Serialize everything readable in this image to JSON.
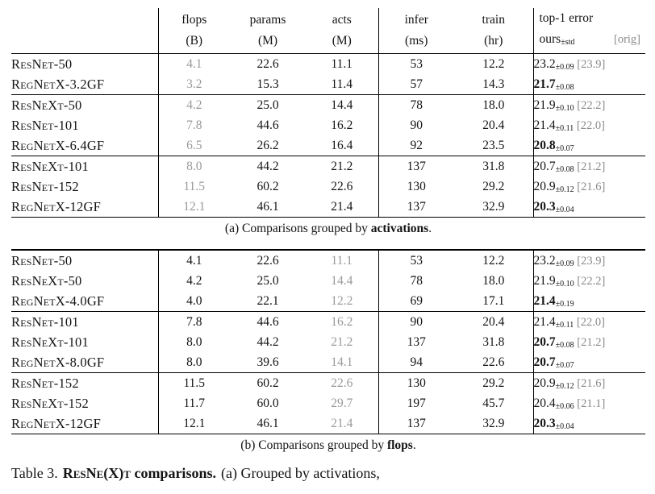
{
  "page": {
    "background": "#ffffff",
    "text_color": "#141414",
    "muted_color": "#999999",
    "orig_color": "#8a8a8a"
  },
  "header": {
    "columns": [
      {
        "name": "flops",
        "unit": "(B)"
      },
      {
        "name": "params",
        "unit": "(M)"
      },
      {
        "name": "acts",
        "unit": "(M)"
      },
      {
        "name": "infer",
        "unit": "(ms)"
      },
      {
        "name": "train",
        "unit": "(hr)"
      }
    ],
    "top1_line1": "top-1 error",
    "top1_ours": "ours",
    "top1_std": "±std",
    "top1_orig": "[orig]"
  },
  "table_a": {
    "muted_column": "flops",
    "caption": {
      "prefix": "(a) Comparisons grouped by ",
      "bold": "activations",
      "suffix": "."
    },
    "groups": [
      {
        "rows": [
          {
            "model": "ResNet-50",
            "flops": "4.1",
            "params": "22.6",
            "acts": "11.1",
            "infer": "53",
            "train": "12.2",
            "err": "23.2",
            "std": "±0.09",
            "orig": "[23.9]",
            "bold": false
          },
          {
            "model": "RegNetX-3.2GF",
            "flops": "3.2",
            "params": "15.3",
            "acts": "11.4",
            "infer": "57",
            "train": "14.3",
            "err": "21.7",
            "std": "±0.08",
            "orig": "",
            "bold": true
          }
        ]
      },
      {
        "rows": [
          {
            "model": "ResNeXt-50",
            "flops": "4.2",
            "params": "25.0",
            "acts": "14.4",
            "infer": "78",
            "train": "18.0",
            "err": "21.9",
            "std": "±0.10",
            "orig": "[22.2]",
            "bold": false
          },
          {
            "model": "ResNet-101",
            "flops": "7.8",
            "params": "44.6",
            "acts": "16.2",
            "infer": "90",
            "train": "20.4",
            "err": "21.4",
            "std": "±0.11",
            "orig": "[22.0]",
            "bold": false
          },
          {
            "model": "RegNetX-6.4GF",
            "flops": "6.5",
            "params": "26.2",
            "acts": "16.4",
            "infer": "92",
            "train": "23.5",
            "err": "20.8",
            "std": "±0.07",
            "orig": "",
            "bold": true
          }
        ]
      },
      {
        "rows": [
          {
            "model": "ResNeXt-101",
            "flops": "8.0",
            "params": "44.2",
            "acts": "21.2",
            "infer": "137",
            "train": "31.8",
            "err": "20.7",
            "std": "±0.08",
            "orig": "[21.2]",
            "bold": false
          },
          {
            "model": "ResNet-152",
            "flops": "11.5",
            "params": "60.2",
            "acts": "22.6",
            "infer": "130",
            "train": "29.2",
            "err": "20.9",
            "std": "±0.12",
            "orig": "[21.6]",
            "bold": false
          },
          {
            "model": "RegNetX-12GF",
            "flops": "12.1",
            "params": "46.1",
            "acts": "21.4",
            "infer": "137",
            "train": "32.9",
            "err": "20.3",
            "std": "±0.04",
            "orig": "",
            "bold": true
          }
        ]
      }
    ]
  },
  "table_b": {
    "muted_column": "acts",
    "caption": {
      "prefix": "(b) Comparisons grouped by ",
      "bold": "flops",
      "suffix": "."
    },
    "groups": [
      {
        "rows": [
          {
            "model": "ResNet-50",
            "flops": "4.1",
            "params": "22.6",
            "acts": "11.1",
            "infer": "53",
            "train": "12.2",
            "err": "23.2",
            "std": "±0.09",
            "orig": "[23.9]",
            "bold": false
          },
          {
            "model": "ResNeXt-50",
            "flops": "4.2",
            "params": "25.0",
            "acts": "14.4",
            "infer": "78",
            "train": "18.0",
            "err": "21.9",
            "std": "±0.10",
            "orig": "[22.2]",
            "bold": false
          },
          {
            "model": "RegNetX-4.0GF",
            "flops": "4.0",
            "params": "22.1",
            "acts": "12.2",
            "infer": "69",
            "train": "17.1",
            "err": "21.4",
            "std": "±0.19",
            "orig": "",
            "bold": true
          }
        ]
      },
      {
        "rows": [
          {
            "model": "ResNet-101",
            "flops": "7.8",
            "params": "44.6",
            "acts": "16.2",
            "infer": "90",
            "train": "20.4",
            "err": "21.4",
            "std": "±0.11",
            "orig": "[22.0]",
            "bold": false
          },
          {
            "model": "ResNeXt-101",
            "flops": "8.0",
            "params": "44.2",
            "acts": "21.2",
            "infer": "137",
            "train": "31.8",
            "err": "20.7",
            "std": "±0.08",
            "orig": "[21.2]",
            "bold": true
          },
          {
            "model": "RegNetX-8.0GF",
            "flops": "8.0",
            "params": "39.6",
            "acts": "14.1",
            "infer": "94",
            "train": "22.6",
            "err": "20.7",
            "std": "±0.07",
            "orig": "",
            "bold": true
          }
        ]
      },
      {
        "rows": [
          {
            "model": "ResNet-152",
            "flops": "11.5",
            "params": "60.2",
            "acts": "22.6",
            "infer": "130",
            "train": "29.2",
            "err": "20.9",
            "std": "±0.12",
            "orig": "[21.6]",
            "bold": false
          },
          {
            "model": "ResNeXt-152",
            "flops": "11.7",
            "params": "60.0",
            "acts": "29.7",
            "infer": "197",
            "train": "45.7",
            "err": "20.4",
            "std": "±0.06",
            "orig": "[21.1]",
            "bold": false
          },
          {
            "model": "RegNetX-12GF",
            "flops": "12.1",
            "params": "46.1",
            "acts": "21.4",
            "infer": "137",
            "train": "32.9",
            "err": "20.3",
            "std": "±0.04",
            "orig": "",
            "bold": true
          }
        ]
      }
    ]
  },
  "main_caption": {
    "label": "Table 3.",
    "title_name": "ResNe(X)t",
    "title_rest": " comparisons.",
    "rest": "(a) Grouped by activations,"
  }
}
